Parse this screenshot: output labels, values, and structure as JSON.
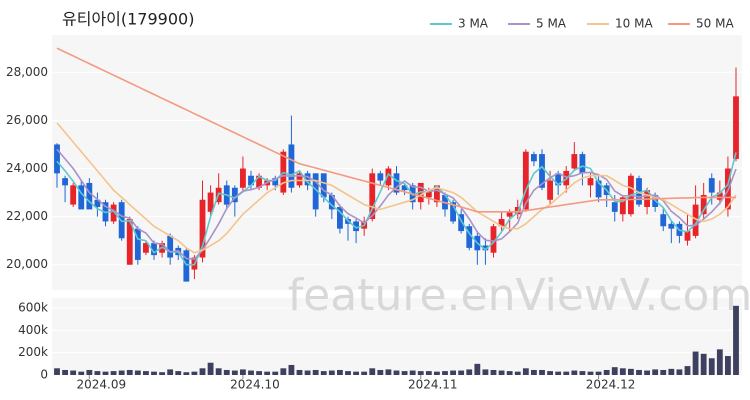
{
  "chart_data": {
    "type": "candlestick",
    "title": "유티아이(179900)",
    "watermark": "feature.enViewV.com",
    "categories": [
      null,
      null,
      null,
      null,
      "2024.09",
      null,
      null,
      null,
      null,
      null,
      null,
      null,
      null,
      null,
      null,
      null,
      null,
      null,
      null,
      null,
      null,
      null,
      null,
      "2024.10",
      null,
      null,
      null,
      null,
      null,
      null,
      null,
      null,
      null,
      null,
      null,
      null,
      null,
      null,
      null,
      null,
      null,
      null,
      null,
      null,
      null,
      "2024.11",
      null,
      null,
      null,
      null,
      null,
      null,
      null,
      null,
      null,
      null,
      null,
      null,
      null,
      null,
      null,
      null,
      null,
      null,
      null,
      null,
      null,
      "2024.12",
      null,
      null,
      null,
      null,
      null,
      null,
      null,
      null,
      null,
      null,
      null,
      null,
      null,
      null,
      null,
      null,
      null
    ],
    "open": [
      25000,
      23600,
      22500,
      23300,
      23400,
      22700,
      22600,
      21800,
      22600,
      20000,
      21500,
      20500,
      20900,
      20500,
      21200,
      20700,
      20600,
      19800,
      20300,
      22200,
      22600,
      23300,
      23200,
      23200,
      23700,
      23200,
      23300,
      23600,
      23000,
      25000,
      23300,
      23800,
      23800,
      23800,
      22900,
      22400,
      21900,
      21800,
      21500,
      21900,
      23800,
      23300,
      23800,
      23300,
      23300,
      22600,
      22800,
      22600,
      22900,
      22600,
      22100,
      21600,
      21200,
      20800,
      20500,
      21600,
      22000,
      22100,
      22300,
      24600,
      24600,
      22700,
      23800,
      23300,
      24000,
      24600,
      23300,
      23500,
      23300,
      22600,
      22100,
      22100,
      23600,
      22400,
      22900,
      22100,
      21700,
      21700,
      21000,
      21200,
      22100,
      23600,
      22700,
      22300,
      24400
    ],
    "high": [
      25050,
      23700,
      23400,
      23500,
      23600,
      23000,
      22700,
      22600,
      22700,
      22000,
      21600,
      21000,
      21000,
      21000,
      21300,
      20800,
      20700,
      20400,
      23500,
      23300,
      23800,
      23500,
      23300,
      24500,
      23900,
      23800,
      23600,
      23700,
      24800,
      26200,
      23900,
      23900,
      23800,
      23800,
      23000,
      22500,
      22000,
      21900,
      22000,
      24000,
      23900,
      24100,
      24100,
      23400,
      23400,
      23400,
      23200,
      23300,
      23000,
      22700,
      22300,
      21700,
      21400,
      21100,
      21700,
      22200,
      22300,
      22700,
      24800,
      24700,
      24800,
      23900,
      23900,
      24100,
      25100,
      24700,
      23800,
      23700,
      23400,
      22900,
      22900,
      23800,
      23700,
      23200,
      23000,
      22400,
      21800,
      21800,
      22100,
      23300,
      23400,
      23800,
      23500,
      24500,
      28200
    ],
    "low": [
      23200,
      22600,
      22400,
      22300,
      22300,
      22000,
      21600,
      21700,
      21000,
      20000,
      20000,
      20400,
      20200,
      20300,
      20000,
      20200,
      19300,
      19400,
      20100,
      22000,
      22500,
      22300,
      22000,
      23000,
      23100,
      23100,
      23100,
      23100,
      22900,
      23000,
      23200,
      23100,
      22000,
      22600,
      21900,
      21300,
      21000,
      20900,
      21200,
      21800,
      23300,
      23100,
      22900,
      22900,
      22300,
      22300,
      22500,
      22400,
      22000,
      21700,
      21300,
      20600,
      20000,
      20000,
      20300,
      21400,
      21400,
      21900,
      22200,
      24100,
      23100,
      22500,
      22900,
      23000,
      23900,
      23300,
      22800,
      22600,
      22400,
      21800,
      21800,
      22000,
      22400,
      22100,
      22200,
      21400,
      20900,
      20900,
      20800,
      21100,
      21900,
      22500,
      22500,
      22000,
      24300
    ],
    "close": [
      23800,
      23300,
      23300,
      22300,
      22300,
      22400,
      21800,
      22500,
      21100,
      21900,
      20200,
      20900,
      20400,
      20900,
      20300,
      20400,
      19300,
      20300,
      22700,
      23000,
      23200,
      22500,
      22600,
      24000,
      23300,
      23700,
      23500,
      23300,
      24700,
      23200,
      23800,
      23300,
      22300,
      22800,
      22300,
      21500,
      21700,
      21400,
      21800,
      23800,
      23500,
      24000,
      23000,
      23100,
      22600,
      23400,
      23100,
      23300,
      22300,
      21800,
      21400,
      20700,
      20600,
      20600,
      21600,
      21900,
      22200,
      22400,
      24700,
      24300,
      23200,
      23500,
      23300,
      23900,
      24600,
      23800,
      23600,
      22800,
      22900,
      22200,
      22800,
      23700,
      22500,
      23100,
      22400,
      21600,
      21500,
      21200,
      21400,
      22500,
      22900,
      23000,
      23000,
      24000,
      27000
    ],
    "volume": [
      60000,
      45000,
      40000,
      30000,
      45000,
      35000,
      30000,
      35000,
      40000,
      45000,
      40000,
      35000,
      30000,
      25000,
      50000,
      35000,
      25000,
      30000,
      60000,
      110000,
      60000,
      45000,
      40000,
      50000,
      40000,
      35000,
      30000,
      30000,
      60000,
      90000,
      45000,
      40000,
      45000,
      35000,
      40000,
      45000,
      35000,
      30000,
      30000,
      60000,
      45000,
      50000,
      40000,
      35000,
      40000,
      35000,
      35000,
      30000,
      35000,
      40000,
      40000,
      50000,
      100000,
      50000,
      45000,
      40000,
      35000,
      30000,
      60000,
      45000,
      45000,
      35000,
      30000,
      30000,
      40000,
      35000,
      30000,
      30000,
      45000,
      70000,
      60000,
      55000,
      45000,
      40000,
      50000,
      45000,
      55000,
      50000,
      80000,
      210000,
      190000,
      150000,
      230000,
      170000,
      620000
    ],
    "ma": [
      {
        "name": "3 MA",
        "color": "#5fc9cf",
        "values": [
          24300,
          23900,
          23470,
          22970,
          22630,
          22330,
          22170,
          22230,
          21800,
          21830,
          21070,
          21000,
          20500,
          20730,
          20530,
          20530,
          20000,
          20000,
          20770,
          22000,
          22970,
          22900,
          22770,
          23030,
          23300,
          23670,
          23500,
          23500,
          23830,
          23730,
          23900,
          23430,
          23130,
          22800,
          22470,
          22200,
          21830,
          21530,
          21630,
          22330,
          23030,
          23770,
          23500,
          23370,
          22900,
          23030,
          23030,
          23270,
          22900,
          22470,
          21830,
          21300,
          20900,
          20630,
          20930,
          21370,
          21900,
          22170,
          23100,
          23800,
          24070,
          23670,
          23330,
          23570,
          23930,
          24100,
          24000,
          23400,
          23100,
          22630,
          22630,
          22900,
          23000,
          23100,
          22670,
          22370,
          21830,
          21430,
          21370,
          21700,
          22270,
          22800,
          22970,
          23330,
          24670
        ]
      },
      {
        "name": "5 MA",
        "color": "#a993c9",
        "values": [
          24800,
          24400,
          24000,
          23500,
          23000,
          22720,
          22420,
          22260,
          22020,
          21940,
          21500,
          21320,
          20900,
          20860,
          20540,
          20580,
          20260,
          20240,
          20600,
          21140,
          21700,
          22340,
          22800,
          23060,
          23120,
          23220,
          23420,
          23560,
          23700,
          23680,
          23700,
          23660,
          23460,
          23080,
          22900,
          22440,
          22120,
          21940,
          21740,
          22040,
          22440,
          22900,
          23220,
          23480,
          23240,
          23220,
          23040,
          23100,
          22940,
          22780,
          22380,
          21900,
          21360,
          21020,
          20980,
          21080,
          21380,
          21740,
          22560,
          23100,
          23360,
          23620,
          23800,
          23640,
          23700,
          23820,
          23840,
          23740,
          23540,
          23060,
          22860,
          22880,
          22820,
          22860,
          22900,
          22660,
          22220,
          21960,
          21620,
          21640,
          21900,
          22200,
          22560,
          23080,
          23980
        ]
      },
      {
        "name": "10 MA",
        "color": "#f3c48c",
        "values": [
          25900,
          25500,
          25100,
          24700,
          24300,
          23900,
          23500,
          23100,
          22800,
          22500,
          22200,
          21900,
          21600,
          21400,
          21200,
          21000,
          20700,
          20500,
          20600,
          20800,
          21000,
          21300,
          21700,
          22100,
          22400,
          22700,
          23000,
          23200,
          23400,
          23500,
          23500,
          23500,
          23500,
          23400,
          23300,
          23100,
          22900,
          22700,
          22500,
          22400,
          22300,
          22400,
          22500,
          22600,
          22700,
          22900,
          23100,
          23200,
          23100,
          23000,
          22800,
          22500,
          22200,
          22000,
          21800,
          21600,
          21500,
          21500,
          21700,
          22000,
          22300,
          22500,
          22800,
          23100,
          23400,
          23600,
          23700,
          23700,
          23700,
          23500,
          23300,
          23200,
          23000,
          22900,
          22800,
          22700,
          22500,
          22300,
          22100,
          21900,
          21800,
          21900,
          22100,
          22400,
          22900
        ]
      },
      {
        "name": "50 MA",
        "color": "#f39a80",
        "values": [
          29000,
          28840,
          28680,
          28520,
          28360,
          28200,
          28040,
          27880,
          27720,
          27560,
          27400,
          27240,
          27080,
          26920,
          26760,
          26600,
          26440,
          26280,
          26120,
          25960,
          25800,
          25640,
          25480,
          25320,
          25160,
          25000,
          24840,
          24680,
          24520,
          24360,
          24200,
          24110,
          24020,
          23930,
          23840,
          23750,
          23660,
          23570,
          23480,
          23390,
          23300,
          23210,
          23120,
          23030,
          22940,
          22850,
          22760,
          22670,
          22580,
          22490,
          22400,
          22300,
          22200,
          22200,
          22200,
          22200,
          22200,
          22200,
          22250,
          22300,
          22350,
          22400,
          22450,
          22500,
          22550,
          22600,
          22650,
          22700,
          22700,
          22700,
          22700,
          22710,
          22720,
          22730,
          22740,
          22750,
          22760,
          22770,
          22780,
          22790,
          22800,
          22800,
          22800,
          22800,
          22800
        ]
      }
    ],
    "up_color": "#e8242b",
    "down_color": "#1f66d6",
    "volume_color": "#3e405f",
    "ylim": [
      18950,
      29550
    ],
    "yticks": [
      {
        "value": 20000,
        "label": "20,000"
      },
      {
        "value": 22000,
        "label": "22,000"
      },
      {
        "value": 24000,
        "label": "24,000"
      },
      {
        "value": 26000,
        "label": "26,000"
      },
      {
        "value": 28000,
        "label": "28,000"
      }
    ],
    "y2lim": [
      0,
      690000
    ],
    "y2ticks": [
      0,
      {
        "value": 200000,
        "label": "200k"
      },
      {
        "value": 400000,
        "label": "400k"
      },
      {
        "value": 600000,
        "label": "600k"
      }
    ],
    "grid": true
  }
}
